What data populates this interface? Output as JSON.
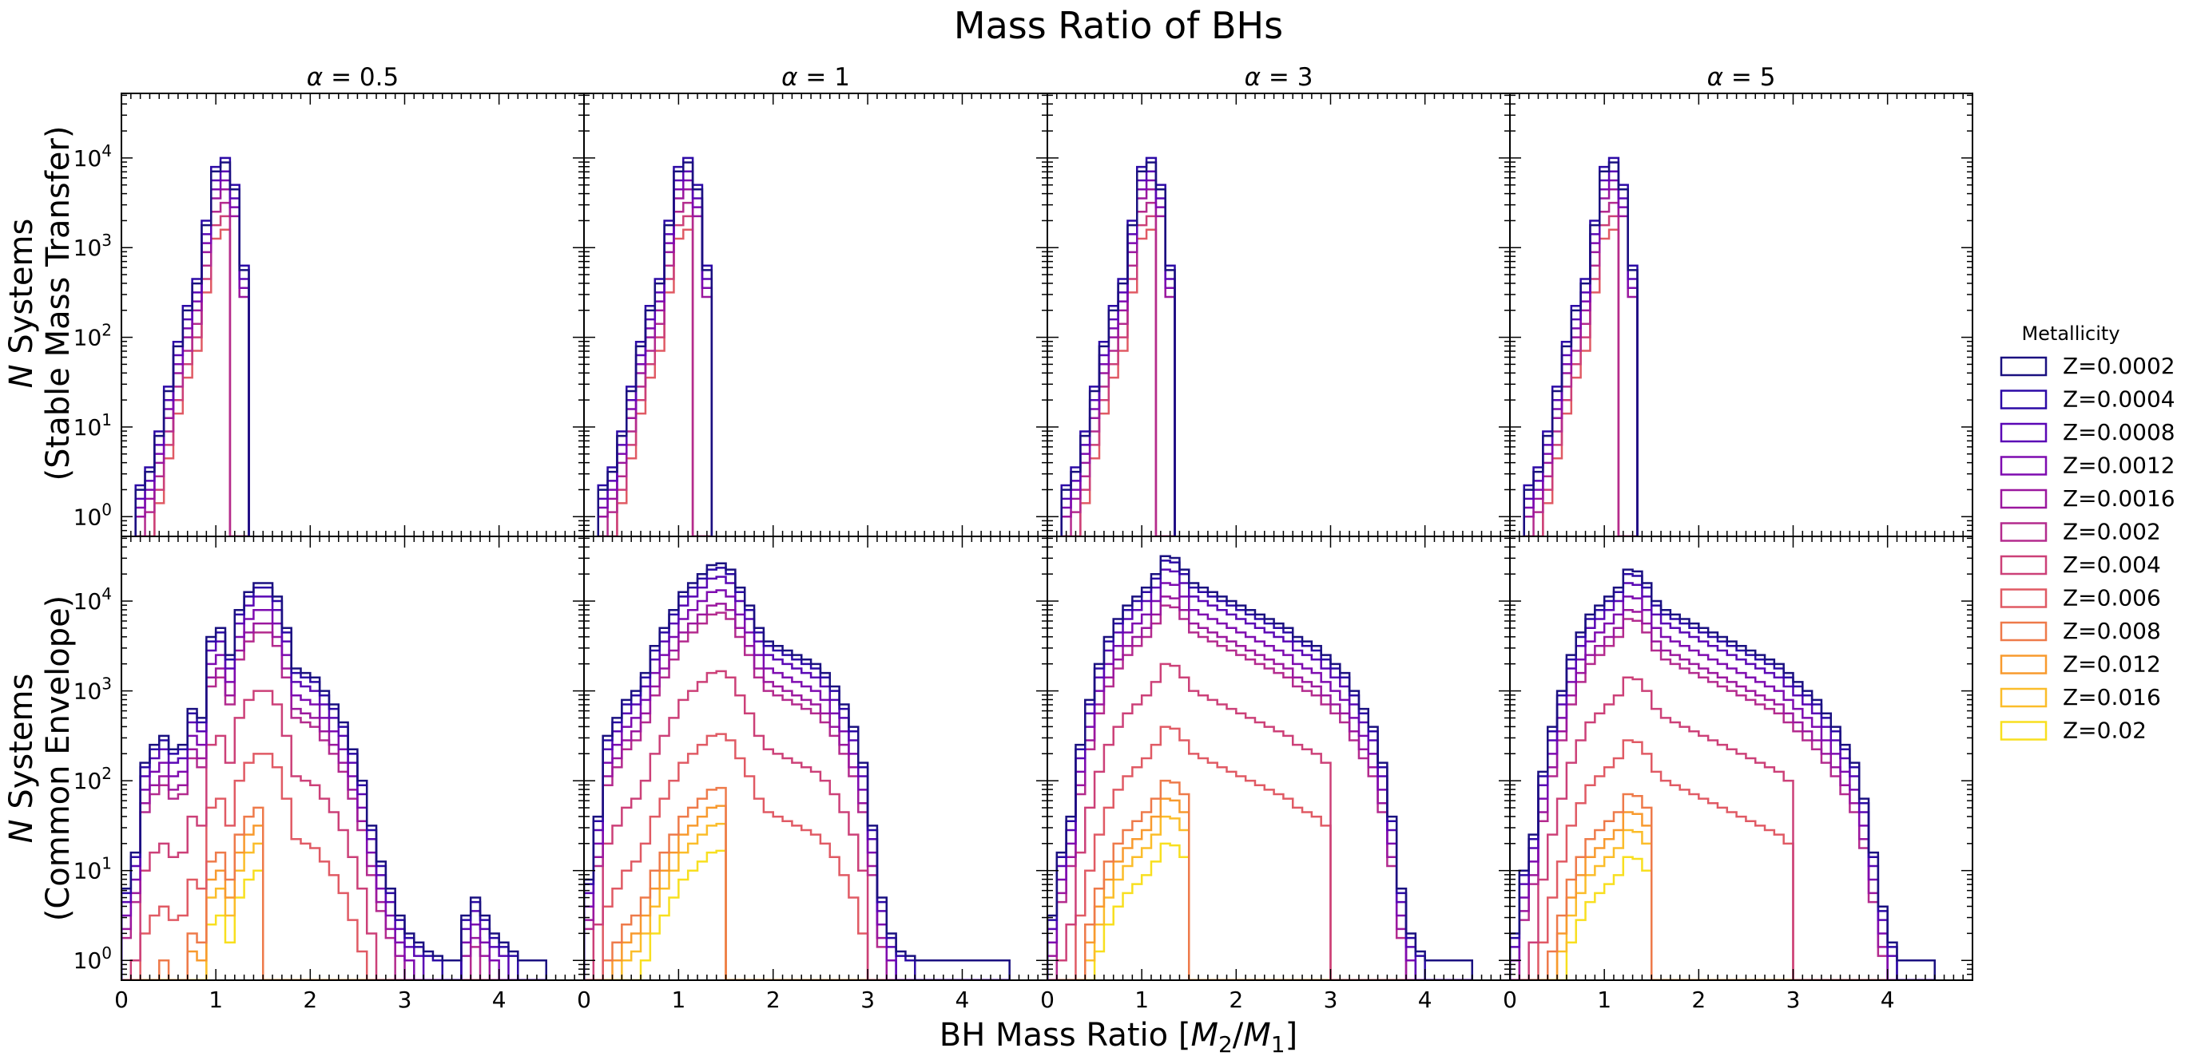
{
  "chart_data": {
    "type": "step-histogram",
    "title": "Mass Ratio of BHs",
    "xlabel_parts": [
      "BH Mass Ratio [",
      "M",
      "2",
      "/",
      "M",
      "1",
      "]"
    ],
    "row_labels": [
      {
        "line1_italic": "N",
        "line1_rest": " Systems",
        "line2": "(Stable Mass Transfer)"
      },
      {
        "line1_italic": "N",
        "line1_rest": " Systems",
        "line2": "(Common Envelope)"
      }
    ],
    "panel_titles": [
      {
        "symbol": "α",
        "value": " = 0.5"
      },
      {
        "symbol": "α",
        "value": " = 1"
      },
      {
        "symbol": "α",
        "value": " = 3"
      },
      {
        "symbol": "α",
        "value": " = 5"
      }
    ],
    "x_ticks": [
      "0",
      "1",
      "2",
      "3",
      "4"
    ],
    "xlim": [
      0,
      4.9
    ],
    "y_scale": "log",
    "ylim_log10": [
      -0.22,
      4.72
    ],
    "y_ticks": [
      {
        "base": "10",
        "exp": "0"
      },
      {
        "base": "10",
        "exp": "1"
      },
      {
        "base": "10",
        "exp": "2"
      },
      {
        "base": "10",
        "exp": "3"
      },
      {
        "base": "10",
        "exp": "4"
      }
    ],
    "legend": {
      "title": "Metallicity",
      "placement": "right, outside",
      "entries": [
        "Z=0.0002",
        "Z=0.0004",
        "Z=0.0008",
        "Z=0.0012",
        "Z=0.0016",
        "Z=0.002",
        "Z=0.004",
        "Z=0.006",
        "Z=0.008",
        "Z=0.012",
        "Z=0.016",
        "Z=0.02"
      ],
      "colors": [
        "#1a1080",
        "#2c0aa6",
        "#5a07b5",
        "#7e0bb0",
        "#9b179e",
        "#b42b8e",
        "#cc4078",
        "#e05a64",
        "#ee7a4a",
        "#f89a2e",
        "#fbbd2a",
        "#f8df1f"
      ]
    },
    "bin_width": 0.1,
    "base_series": {
      "top_shape": [
        {
          "x": 0.2,
          "log": 0.3
        },
        {
          "x": 0.3,
          "log": 0.5
        },
        {
          "x": 0.4,
          "log": 0.9
        },
        {
          "x": 0.5,
          "log": 1.4
        },
        {
          "x": 0.6,
          "log": 1.9
        },
        {
          "x": 0.7,
          "log": 2.3
        },
        {
          "x": 0.8,
          "log": 2.6
        },
        {
          "x": 0.9,
          "log": 3.25
        },
        {
          "x": 1.0,
          "log": 3.85
        },
        {
          "x": 1.1,
          "log": 3.95
        },
        {
          "x": 1.2,
          "log": 3.65
        },
        {
          "x": 1.3,
          "log": 2.75
        }
      ],
      "bottom_a05": [
        0.8,
        1.2,
        2.2,
        2.4,
        2.5,
        2.35,
        2.4,
        2.8,
        2.7,
        3.6,
        3.7,
        3.4,
        3.9,
        4.1,
        4.2,
        4.2,
        4.05,
        3.7,
        3.25,
        3.2,
        3.15,
        3.0,
        2.85,
        2.65,
        2.35,
        2.0,
        1.5,
        1.1,
        0.8,
        0.5,
        0.3,
        0.2,
        0.1,
        0.05,
        0.0,
        0.0,
        0.5,
        0.7,
        0.5,
        0.3,
        0.2,
        0.1,
        0.0,
        0.0,
        0.0
      ],
      "bottom_a1": [
        0.9,
        1.6,
        2.5,
        2.7,
        2.9,
        3.0,
        3.2,
        3.5,
        3.7,
        3.9,
        4.1,
        4.2,
        4.3,
        4.4,
        4.42,
        4.35,
        4.15,
        3.95,
        3.7,
        3.55,
        3.5,
        3.45,
        3.4,
        3.35,
        3.3,
        3.2,
        3.05,
        2.85,
        2.6,
        2.2,
        1.5,
        0.7,
        0.3,
        0.1,
        0.05,
        0.0,
        0.0,
        0.0,
        0.0,
        0.0,
        0.0,
        0.0,
        0.0,
        0.0,
        0.0
      ],
      "bottom_a3": [
        0.5,
        1.2,
        1.6,
        2.4,
        2.9,
        3.3,
        3.6,
        3.8,
        3.95,
        4.05,
        4.15,
        4.3,
        4.5,
        4.48,
        4.35,
        4.2,
        4.15,
        4.1,
        4.05,
        4.0,
        3.95,
        3.9,
        3.85,
        3.8,
        3.75,
        3.7,
        3.6,
        3.55,
        3.5,
        3.4,
        3.3,
        3.2,
        3.0,
        2.8,
        2.6,
        2.2,
        1.6,
        0.8,
        0.3,
        0.1,
        0.0,
        0.0,
        0.0,
        0.0,
        0.0
      ],
      "bottom_a5": [
        0.3,
        1.0,
        1.4,
        2.1,
        2.6,
        3.0,
        3.4,
        3.65,
        3.85,
        3.95,
        4.05,
        4.15,
        4.35,
        4.33,
        4.2,
        4.0,
        3.9,
        3.85,
        3.8,
        3.75,
        3.7,
        3.65,
        3.6,
        3.55,
        3.5,
        3.45,
        3.4,
        3.35,
        3.3,
        3.2,
        3.1,
        3.0,
        2.9,
        2.75,
        2.6,
        2.4,
        2.2,
        1.8,
        1.2,
        0.6,
        0.2,
        0.0,
        0.0,
        0.0,
        0.0
      ]
    },
    "metallicity_offsets_bottom": [
      0.0,
      -0.05,
      -0.15,
      -0.3,
      -0.45,
      -0.55,
      -1.2,
      -1.9,
      -2.5,
      -2.7,
      -2.9,
      -3.2
    ],
    "metallicity_offsets_top": [
      0.0,
      0.05,
      -0.1,
      -0.2,
      -0.3,
      -0.45,
      -0.6,
      -0.75,
      -9,
      -9,
      -9,
      -9
    ]
  }
}
